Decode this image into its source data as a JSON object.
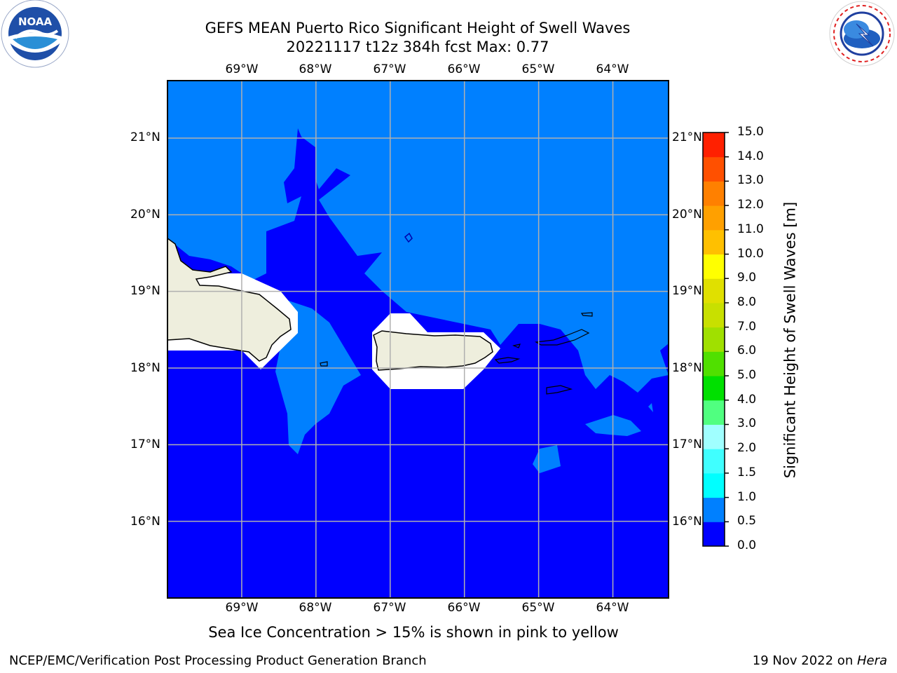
{
  "header": {
    "title_line1": "GEFS MEAN Puerto Rico Significant Height of Swell Waves",
    "title_line2": "20221117 t12z 384h fcst   Max: 0.77"
  },
  "logos": {
    "left": {
      "name": "NOAA",
      "ring_text": "NATIONAL OCEANIC AND ATMOSPHERIC ADMINISTRATION",
      "bottom_text": "U.S. DEPARTMENT OF COMMERCE"
    },
    "right": {
      "ring_text": "NATIONAL WEATHER SERVICE"
    }
  },
  "map": {
    "lon_labels_top": [
      "69°W",
      "68°W",
      "67°W",
      "66°W",
      "65°W",
      "64°W"
    ],
    "lon_labels_bottom": [
      "69°W",
      "68°W",
      "67°W",
      "66°W",
      "65°W",
      "64°W"
    ],
    "lat_labels_left": [
      "21°N",
      "20°N",
      "19°N",
      "18°N",
      "17°N",
      "16°N"
    ],
    "lat_labels_right": [
      "21°N",
      "20°N",
      "19°N",
      "18°N",
      "17°N",
      "16°N"
    ],
    "colors": {
      "deep": "#0000ff",
      "shallow": "#0080ff",
      "land": "#eeeedd",
      "grid": "#b0b0b0"
    }
  },
  "chart_data": {
    "type": "heatmap",
    "title": "GEFS MEAN Puerto Rico Significant Height of Swell Waves",
    "variable": "Significant Height of Swell Waves [m]",
    "max_value": 0.77,
    "lon_range": [
      -70,
      -63.25
    ],
    "lat_range": [
      15,
      21.75
    ],
    "colorbar": {
      "label": "Significant Height of Swell Waves [m]",
      "levels": [
        0.0,
        0.5,
        1.0,
        1.5,
        2.0,
        3.0,
        4.0,
        5.0,
        6.0,
        7.0,
        8.0,
        9.0,
        10.0,
        11.0,
        12.0,
        13.0,
        14.0,
        15.0
      ],
      "tick_labels": [
        "0.0",
        "0.5",
        "1.0",
        "1.5",
        "2.0",
        "3.0",
        "4.0",
        "5.0",
        "6.0",
        "7.0",
        "8.0",
        "9.0",
        "10.0",
        "11.0",
        "12.0",
        "13.0",
        "14.0",
        "15.0"
      ],
      "colors": [
        "#0000ff",
        "#0080ff",
        "#00ffff",
        "#40ffff",
        "#a0ffff",
        "#50ff80",
        "#00e000",
        "#50e000",
        "#a0e000",
        "#c8e000",
        "#e0e000",
        "#ffff00",
        "#ffc000",
        "#ffa000",
        "#ff8000",
        "#ff5000",
        "#ff2000"
      ]
    }
  },
  "footer": {
    "subtitle": "Sea Ice Concentration > 15% is shown in pink to yellow",
    "left_credit": "NCEP/EMC/Verification Post Processing Product Generation Branch",
    "date_text": "19 Nov 2022 on ",
    "machine": "Hera"
  }
}
